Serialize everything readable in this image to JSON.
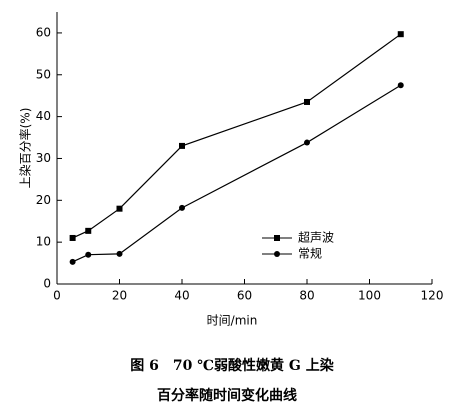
{
  "chart_data": {
    "type": "line",
    "title": "图 6　70 ℃弱酸性嫩黄 G 上染",
    "subtitle": "百分率随时间变化曲线",
    "x_label": "时间/min",
    "y_label": "上染百分率(%)",
    "x": [
      5,
      10,
      20,
      40,
      80,
      110
    ],
    "series": [
      {
        "name": "超声波",
        "color": "#000000",
        "marker": "square",
        "values": [
          11,
          12.7,
          18,
          33,
          43.5,
          59.7
        ]
      },
      {
        "name": "常规",
        "color": "#000000",
        "marker": "circle",
        "values": [
          5.3,
          7,
          7.2,
          18.2,
          33.8,
          47.5
        ]
      }
    ],
    "xlim": [
      0,
      120
    ],
    "xticks": [
      0,
      20,
      40,
      60,
      80,
      100,
      120
    ],
    "ylim": [
      0,
      65
    ],
    "yticks": [
      0,
      10,
      20,
      30,
      40,
      50,
      60
    ],
    "grid": false
  }
}
